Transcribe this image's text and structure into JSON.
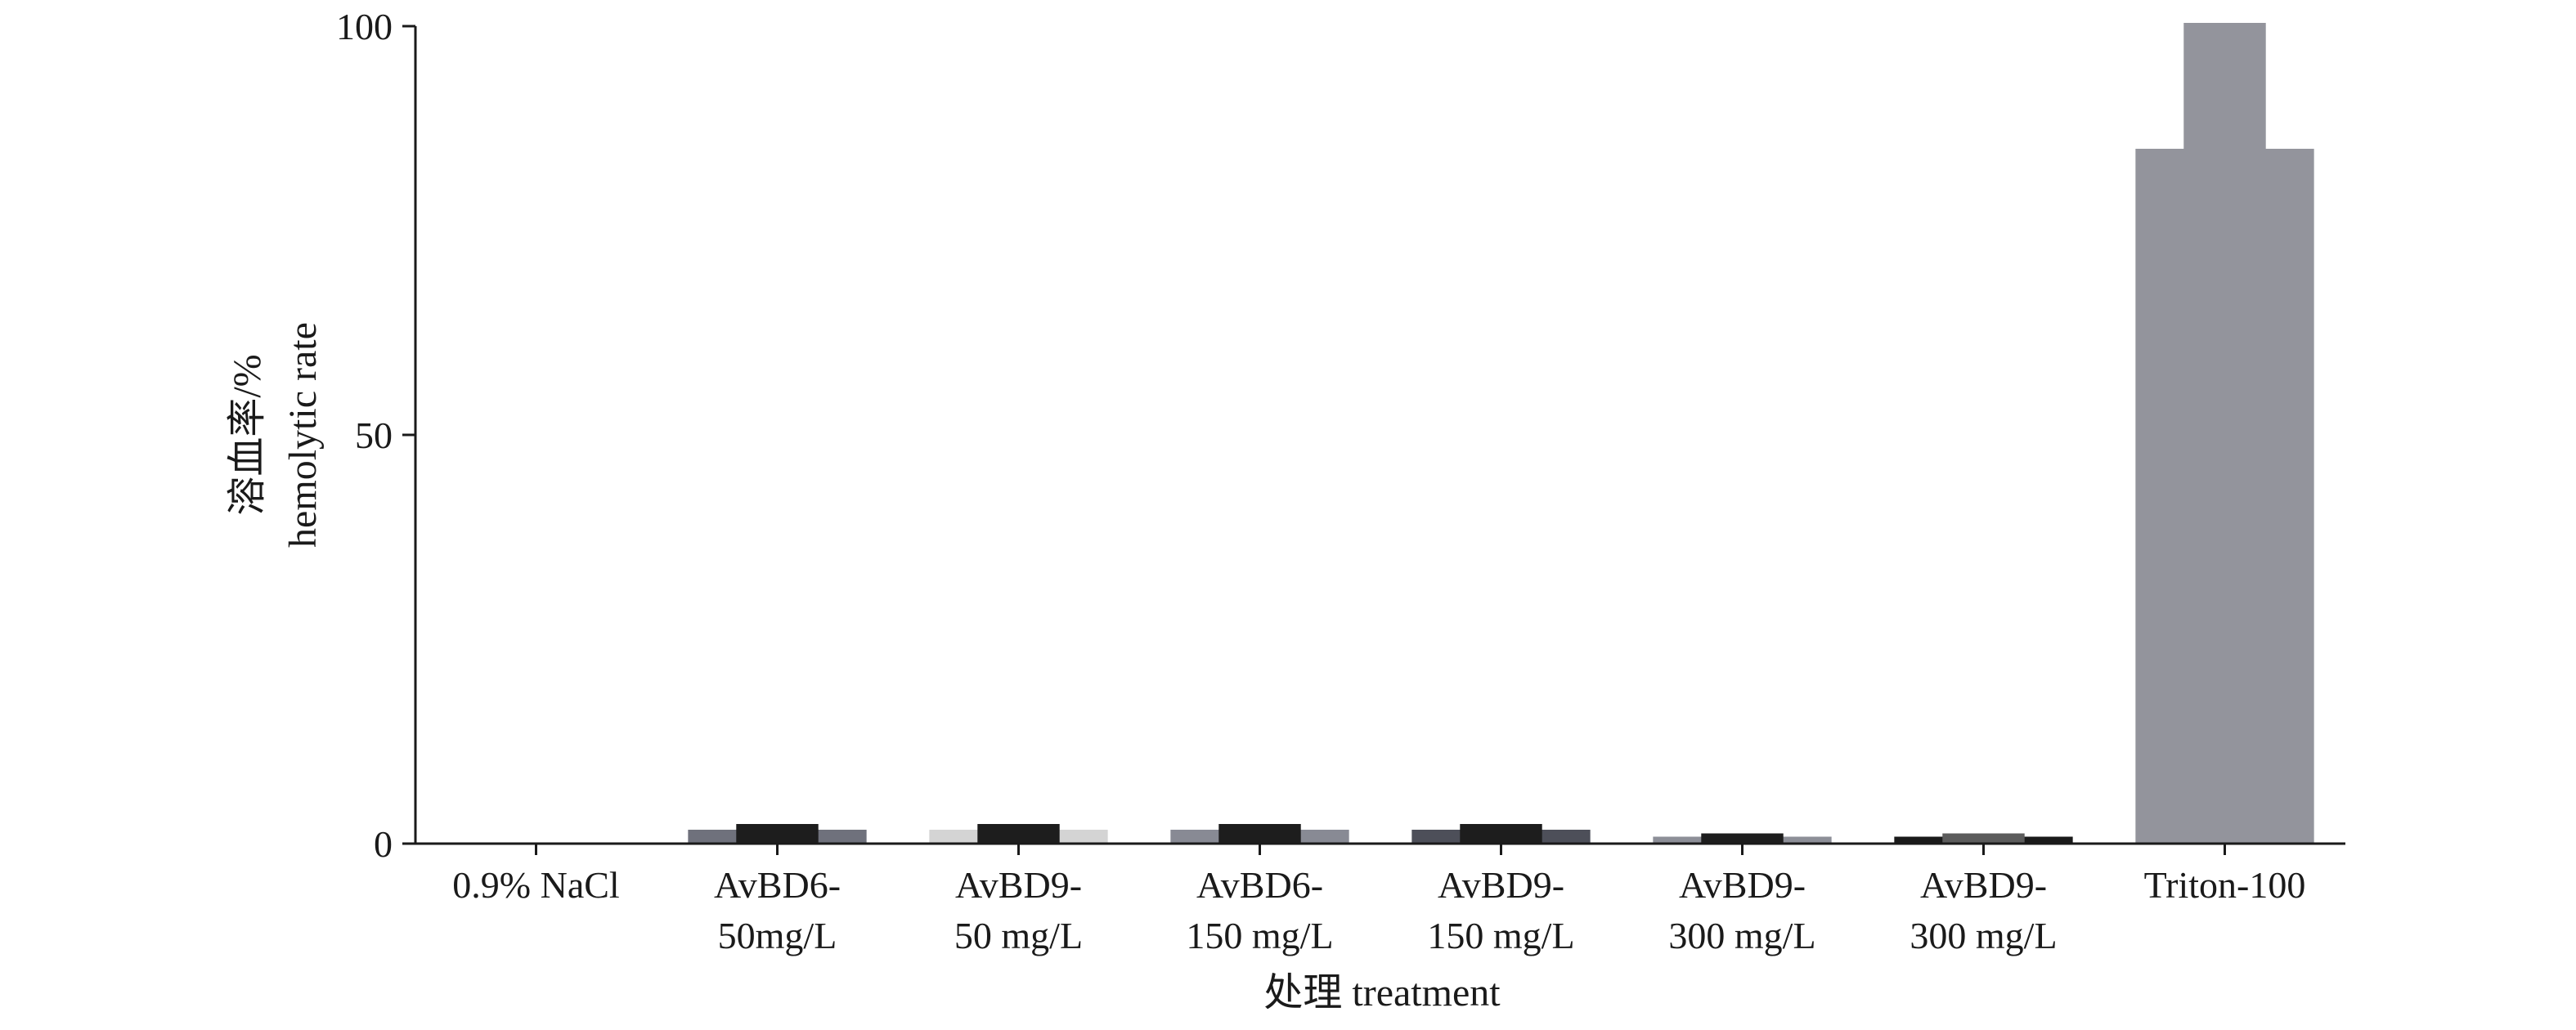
{
  "chart_data": {
    "type": "bar",
    "title": "",
    "xlabel": "处理 treatment",
    "ylabel": [
      "溶血率/%",
      "hemolytic rate"
    ],
    "ylim": [
      0,
      100
    ],
    "yticks": [
      0,
      50,
      100
    ],
    "grid": false,
    "legend": "none",
    "categories": [
      [
        "0.9% NaCl"
      ],
      [
        "AvBD6-",
        "50mg/L"
      ],
      [
        "AvBD9-",
        "50 mg/L"
      ],
      [
        "AvBD6-",
        "150 mg/L"
      ],
      [
        "AvBD9-",
        "150 mg/L"
      ],
      [
        "AvBD9-",
        "300 mg/L"
      ],
      [
        "AvBD9-",
        "300 mg/L"
      ],
      [
        "Triton-100"
      ]
    ],
    "values": [
      0,
      2,
      2,
      2,
      2,
      1,
      1,
      100
    ],
    "bar_colors": [
      [
        "#ffffff",
        "#ffffff",
        "#ffffff"
      ],
      [
        "#6f717c",
        "#1d1d1d",
        "#6f717c"
      ],
      [
        "#d4d4d4",
        "#1d1d1d",
        "#d4d4d4"
      ],
      [
        "#888a94",
        "#1d1d1d",
        "#888a94"
      ],
      [
        "#4d4f59",
        "#1d1d1d",
        "#4d4f59"
      ],
      [
        "#8d8f98",
        "#1d1d1d",
        "#8d8f98"
      ],
      [
        "#1a1a1a",
        "#5c5c5c",
        "#1a1a1a"
      ],
      [
        "#93949c",
        "#93949c",
        "#93949c"
      ]
    ]
  }
}
